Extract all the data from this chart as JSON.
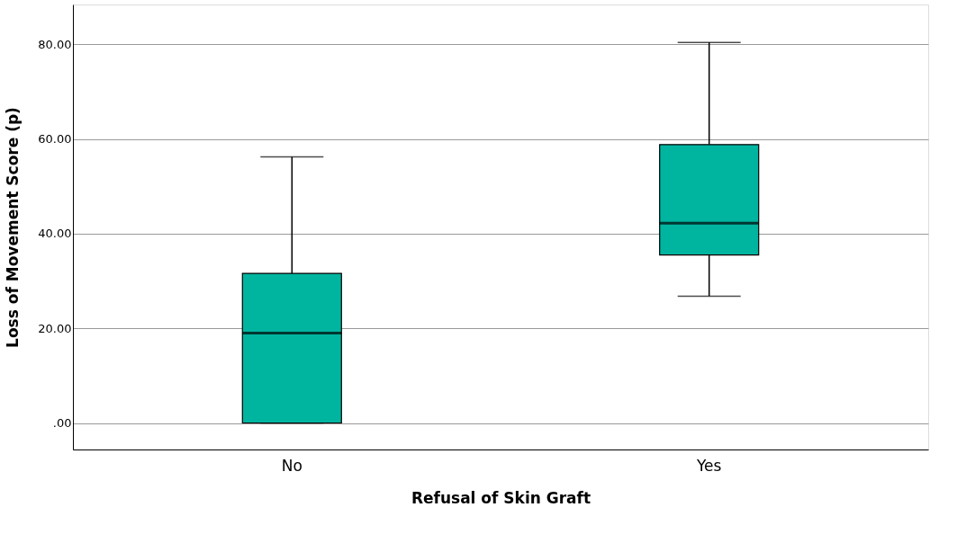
{
  "chart_data": {
    "type": "box",
    "xlabel": "Refusal of Skin Graft",
    "ylabel": "Loss of Movement Score (p)",
    "categories": [
      "No",
      "Yes"
    ],
    "boxes": [
      {
        "low": 0,
        "q1": 0,
        "median": 19,
        "q3": 31.6,
        "high": 56.2
      },
      {
        "low": 26.8,
        "q1": 35.5,
        "median": 42.2,
        "q3": 58.8,
        "high": 80.4
      }
    ],
    "color": "#00b5a0",
    "ylim": [
      -5.6,
      88.4
    ],
    "yticks": [
      {
        "value": 0,
        "label": ".00"
      },
      {
        "value": 20,
        "label": "20.00"
      },
      {
        "value": 40,
        "label": "40.00"
      },
      {
        "value": 60,
        "label": "60.00"
      },
      {
        "value": 80,
        "label": "80.00"
      }
    ],
    "grid": "y"
  }
}
